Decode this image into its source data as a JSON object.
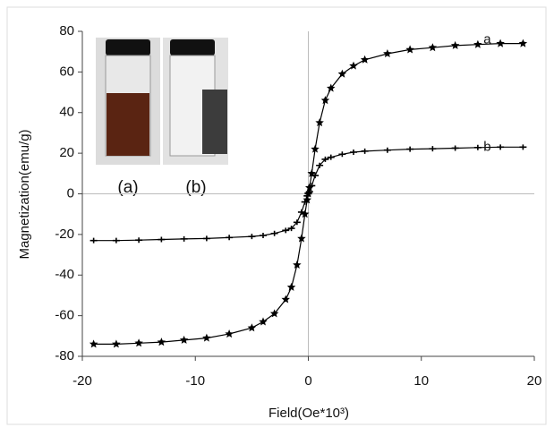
{
  "chart_data": {
    "type": "line",
    "x_label": "Field(Oe*10³)",
    "y_label": "Magnetization(emu/g)",
    "x": [
      -19,
      -17,
      -15,
      -13,
      -11,
      -9,
      -7,
      -5,
      -4,
      -3,
      -2,
      -1.5,
      -1,
      -0.6,
      -0.3,
      -0.1,
      0,
      0.1,
      0.3,
      0.6,
      1,
      1.5,
      2,
      3,
      4,
      5,
      7,
      9,
      11,
      13,
      15,
      17,
      19
    ],
    "series": [
      {
        "name": "a",
        "color": "#000000",
        "marker": "star",
        "values": [
          -74,
          -74,
          -73.5,
          -73,
          -72,
          -71,
          -69,
          -66,
          -63,
          -59,
          -52,
          -46,
          -35,
          -22,
          -10,
          -3,
          0,
          3,
          10,
          22,
          35,
          46,
          52,
          59,
          63,
          66,
          69,
          71,
          72,
          73,
          73.5,
          74,
          74
        ]
      },
      {
        "name": "b",
        "color": "#000000",
        "marker": "plus",
        "values": [
          -23,
          -23,
          -22.8,
          -22.5,
          -22.2,
          -22,
          -21.5,
          -21,
          -20.5,
          -19.5,
          -18,
          -17,
          -14,
          -9,
          -4,
          -1,
          0,
          1,
          4,
          9,
          14,
          17,
          18,
          19.5,
          20.5,
          21,
          21.5,
          22,
          22.2,
          22.5,
          22.8,
          23,
          23
        ]
      }
    ],
    "xlim": [
      -20,
      20
    ],
    "xticks": [
      -20,
      -10,
      0,
      10,
      20
    ],
    "ylim": [
      -80,
      80
    ],
    "yticks": [
      -80,
      -60,
      -40,
      -20,
      0,
      20,
      40,
      60,
      80
    ],
    "inset_labels": [
      "(a)",
      "(b)"
    ]
  }
}
